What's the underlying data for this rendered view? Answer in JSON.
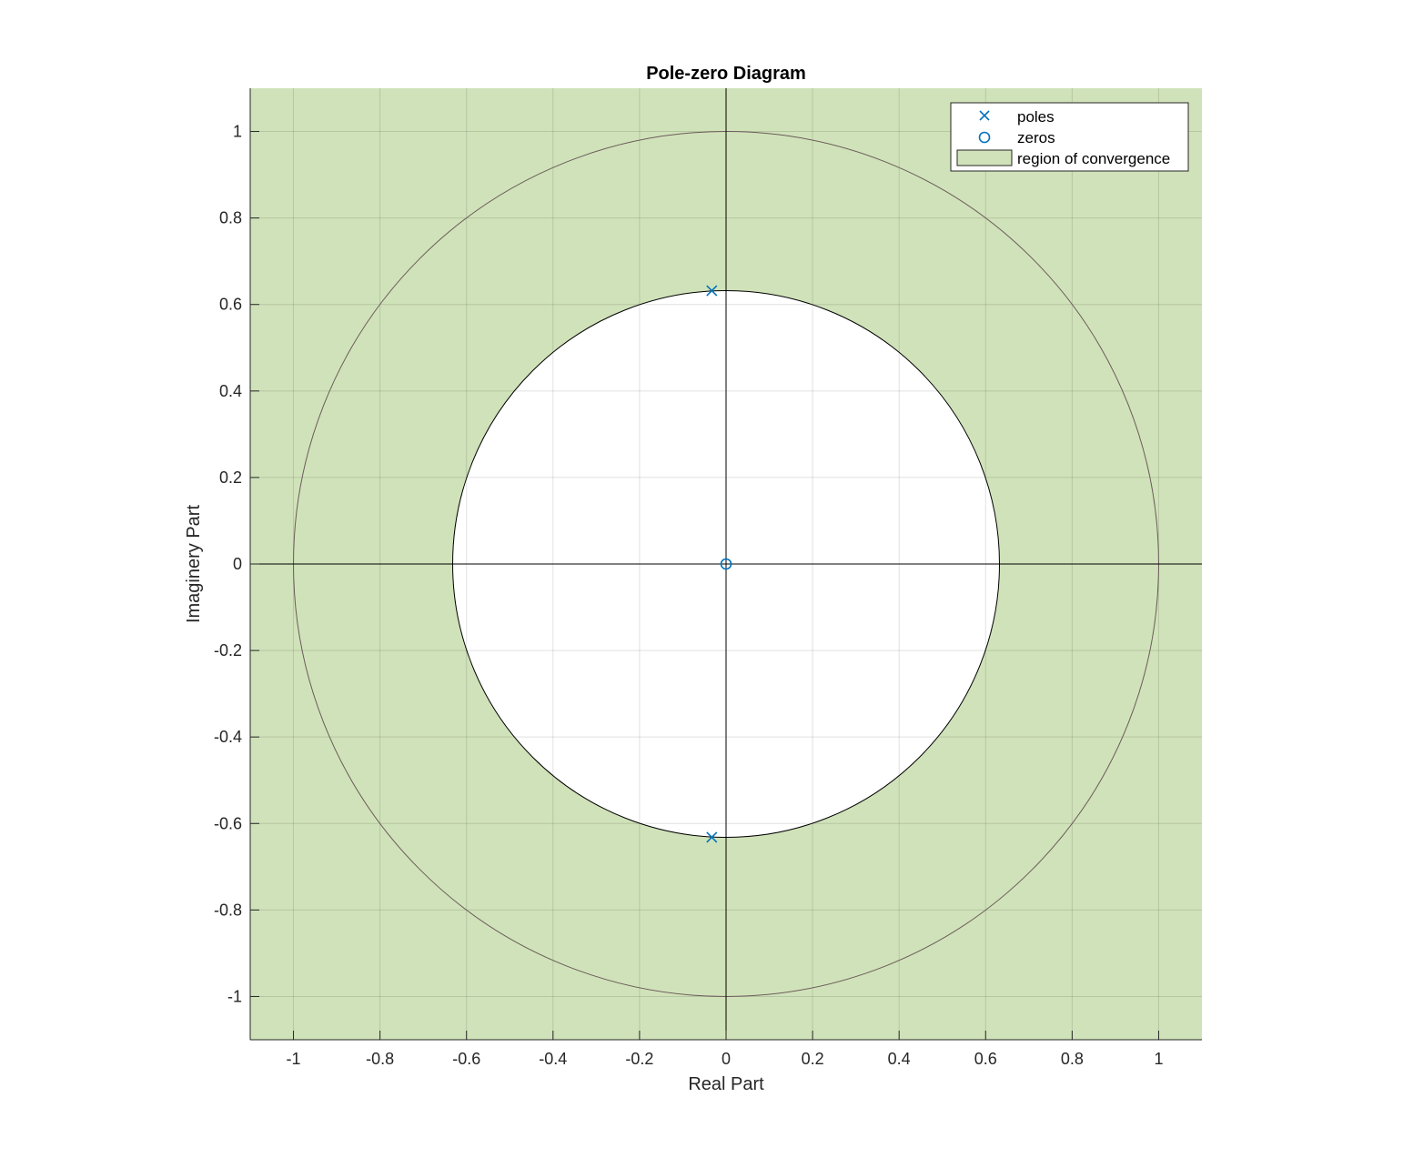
{
  "chart_data": {
    "type": "scatter",
    "title": "Pole-zero Diagram",
    "xlabel": "Real Part",
    "ylabel": "Imaginery Part",
    "xlim": [
      -1.1,
      1.1
    ],
    "ylim": [
      -1.1,
      1.1
    ],
    "xticks": [
      -1,
      -0.8,
      -0.6,
      -0.4,
      -0.2,
      0,
      0.2,
      0.4,
      0.6,
      0.8,
      1
    ],
    "yticks": [
      -1,
      -0.8,
      -0.6,
      -0.4,
      -0.2,
      0,
      0.2,
      0.4,
      0.6,
      0.8,
      1
    ],
    "xtick_labels": [
      "-1",
      "-0.8",
      "-0.6",
      "-0.4",
      "-0.2",
      "0",
      "0.2",
      "0.4",
      "0.6",
      "0.8",
      "1"
    ],
    "ytick_labels": [
      "-1",
      "-0.8",
      "-0.6",
      "-0.4",
      "-0.2",
      "0",
      "0.2",
      "0.4",
      "0.6",
      "0.8",
      "1"
    ],
    "grid": true,
    "unit_circle_radius": 1,
    "roc_inner_radius": 0.632,
    "series": [
      {
        "name": "poles",
        "marker": "x",
        "color": "#0072BD",
        "points": [
          [
            -0.033,
            0.632
          ],
          [
            -0.033,
            -0.632
          ]
        ]
      },
      {
        "name": "zeros",
        "marker": "o",
        "color": "#0072BD",
        "points": [
          [
            0,
            0
          ]
        ]
      }
    ],
    "region": {
      "name": "region of convergence",
      "color": "#D0E2B9",
      "type": "exterior of circle"
    },
    "legend": {
      "position": "top-right",
      "entries": [
        "poles",
        "zeros",
        "region of convergence"
      ]
    }
  }
}
